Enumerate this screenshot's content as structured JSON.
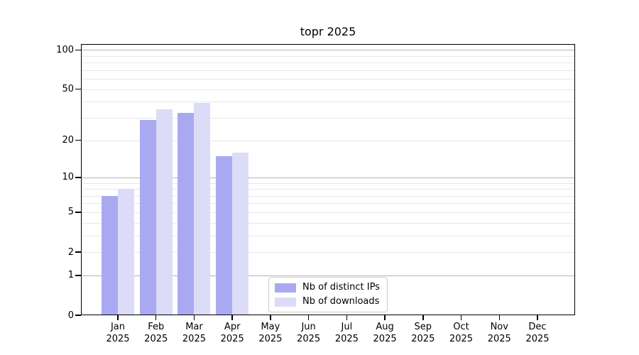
{
  "chart_data": {
    "type": "bar",
    "title": "topr 2025",
    "scale": "log1p",
    "ylim": [
      0,
      110
    ],
    "yticks": [
      0,
      1,
      2,
      5,
      10,
      20,
      50,
      100
    ],
    "grid": {
      "major": [
        1,
        10,
        100
      ],
      "minor": [
        2,
        3,
        4,
        5,
        6,
        7,
        8,
        9,
        20,
        30,
        40,
        50,
        60,
        70,
        80,
        90
      ]
    },
    "categories": [
      "Jan",
      "Feb",
      "Mar",
      "Apr",
      "May",
      "Jun",
      "Jul",
      "Aug",
      "Sep",
      "Oct",
      "Nov",
      "Dec"
    ],
    "year": "2025",
    "series": [
      {
        "name": "Nb of distinct IPs",
        "color": "#a9a9f2",
        "values": [
          7,
          29,
          33,
          15,
          0,
          0,
          0,
          0,
          0,
          0,
          0,
          0
        ]
      },
      {
        "name": "Nb of downloads",
        "color": "#dcdcf8",
        "values": [
          8,
          35,
          39,
          16,
          0,
          0,
          0,
          0,
          0,
          0,
          0,
          0
        ]
      }
    ],
    "legend_position": "lower center"
  }
}
